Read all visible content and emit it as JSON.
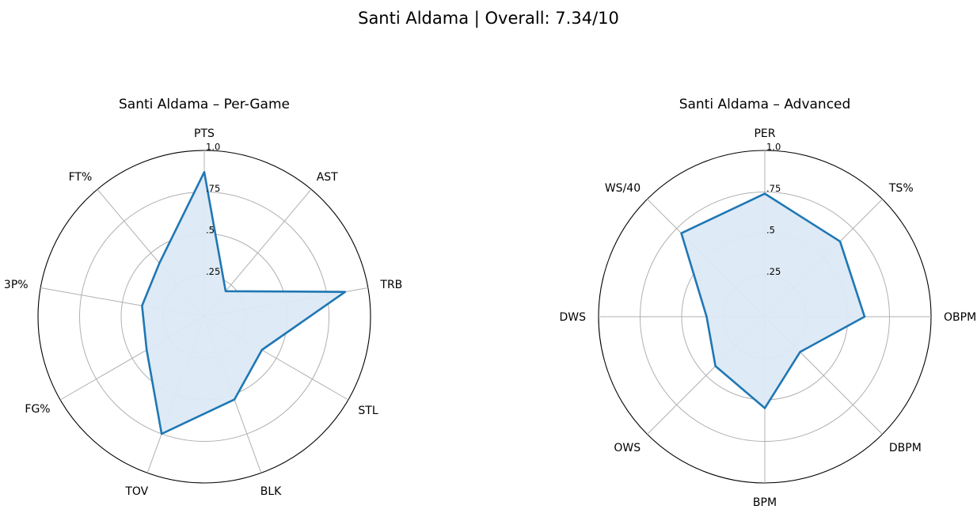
{
  "figure": {
    "title": "Santi Aldama | Overall: 7.34/10"
  },
  "chart_data": [
    {
      "type": "radar",
      "title": "Santi Aldama – Per-Game",
      "categories": [
        "PTS",
        "AST",
        "TRB",
        "STL",
        "BLK",
        "TOV",
        "FG%",
        "3P%",
        "FT%"
      ],
      "values": [
        0.87,
        0.2,
        0.86,
        0.4,
        0.53,
        0.75,
        0.4,
        0.38,
        0.42
      ],
      "rlim": [
        0,
        1.0
      ],
      "rticks": [
        0.25,
        0.5,
        0.75,
        1.0
      ],
      "rtick_labels": [
        ".25",
        ".5",
        ".75",
        "1.0"
      ],
      "grid": true,
      "color": "#1f77b4",
      "fill_color": "#dce9f4"
    },
    {
      "type": "radar",
      "title": "Santi Aldama – Advanced",
      "categories": [
        "PER",
        "TS%",
        "OBPM",
        "DBPM",
        "BPM",
        "OWS",
        "DWS",
        "WS/40"
      ],
      "values": [
        0.74,
        0.64,
        0.6,
        0.3,
        0.55,
        0.42,
        0.35,
        0.71
      ],
      "rlim": [
        0,
        1.0
      ],
      "rticks": [
        0.25,
        0.5,
        0.75,
        1.0
      ],
      "rtick_labels": [
        ".25",
        ".5",
        ".75",
        "1.0"
      ],
      "grid": true,
      "color": "#1f77b4",
      "fill_color": "#dce9f4"
    }
  ]
}
